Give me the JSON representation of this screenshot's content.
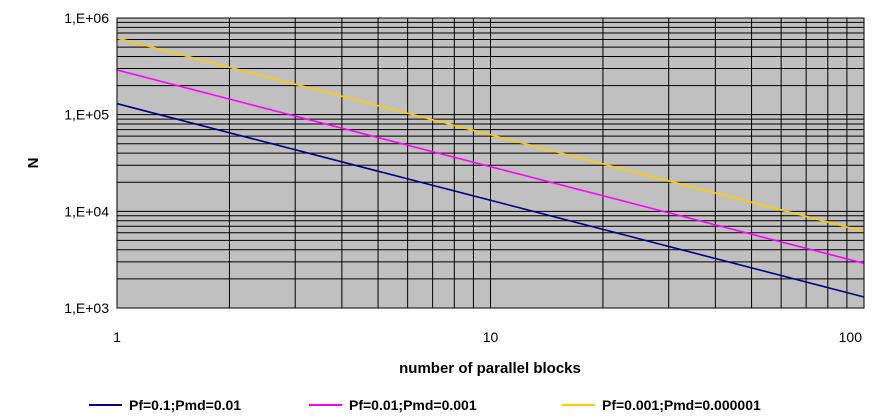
{
  "chart_data": {
    "type": "line",
    "x_scale": "log",
    "y_scale": "log",
    "xlim": [
      1,
      100
    ],
    "ylim": [
      1000,
      1000000
    ],
    "xlabel": "number of parallel blocks",
    "ylabel": "N",
    "x_ticks": [
      "1",
      "10",
      "100"
    ],
    "y_ticks": [
      "1,E+03",
      "1,E+04",
      "1,E+05",
      "1,E+06"
    ],
    "grid": "major and minor, both axes",
    "legend_position": "bottom",
    "plot_background": "#c0c0c0",
    "series": [
      {
        "name": "Pf=0.1;Pmd=0.01",
        "color": "#000080",
        "x": [
          1,
          100
        ],
        "y": [
          130000,
          1300
        ]
      },
      {
        "name": "Pf=0.01;Pmd=0.001",
        "color": "#ff00ff",
        "x": [
          1,
          100
        ],
        "y": [
          290000,
          2900
        ]
      },
      {
        "name": "Pf=0.001;Pmd=0.000001",
        "color": "#ffcc00",
        "x": [
          1,
          100
        ],
        "y": [
          620000,
          6200
        ]
      }
    ]
  }
}
